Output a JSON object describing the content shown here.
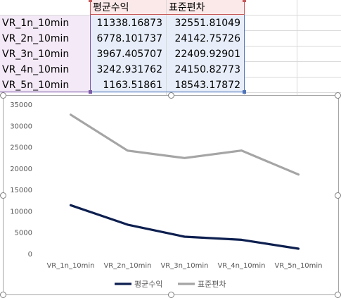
{
  "sheet": {
    "headers": [
      "평균수익",
      "표준편차"
    ],
    "rows": [
      {
        "label": "VR_1n_10min",
        "mean": "11338.16873",
        "std": "32551.81049"
      },
      {
        "label": "VR_2n_10min",
        "mean": "6778.101737",
        "std": "24142.75726"
      },
      {
        "label": "VR_3n_10min",
        "mean": "3967.405707",
        "std": "22409.92901"
      },
      {
        "label": "VR_4n_10min",
        "mean": "3242.931762",
        "std": "24150.82773"
      },
      {
        "label": "VR_5n_10min",
        "mean": "1163.51861",
        "std": "18543.17872"
      }
    ]
  },
  "chart_data": {
    "type": "line",
    "categories": [
      "VR_1n_10min",
      "VR_2n_10min",
      "VR_3n_10min",
      "VR_4n_10min",
      "VR_5n_10min"
    ],
    "series": [
      {
        "name": "평균수익",
        "values": [
          11338.16873,
          6778.101737,
          3967.405707,
          3242.931762,
          1163.51861
        ],
        "color": "#0d1f4f"
      },
      {
        "name": "표준편차",
        "values": [
          32551.81049,
          24142.75726,
          22409.92901,
          24150.82773,
          18543.17872
        ],
        "color": "#a5a5a5"
      }
    ],
    "yticks": [
      "0",
      "5000",
      "10000",
      "15000",
      "20000",
      "25000",
      "30000",
      "35000"
    ],
    "ylim": [
      0,
      35000
    ],
    "grid": false,
    "legend_position": "bottom",
    "title": "",
    "xlabel": "",
    "ylabel": ""
  }
}
